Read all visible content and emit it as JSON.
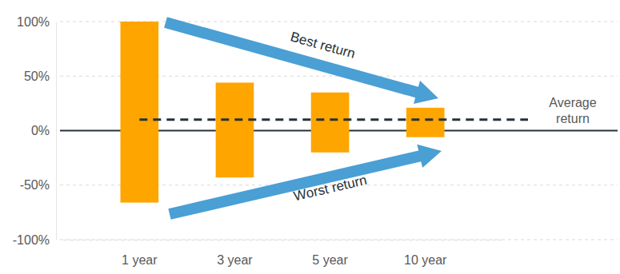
{
  "chart_data": {
    "type": "range_bar",
    "categories": [
      "1 year",
      "3 year",
      "5 year",
      "10 year"
    ],
    "series": [
      {
        "name": "Best return",
        "values": [
          100,
          44,
          35,
          21
        ]
      },
      {
        "name": "Worst return",
        "values": [
          -66,
          -43,
          -20,
          -6
        ]
      }
    ],
    "color": "#ffa500",
    "average": 10,
    "average_label": "Average return",
    "ylim": [
      -100,
      100
    ],
    "yticks": [
      {
        "value": -100,
        "label": "-100%"
      },
      {
        "value": -50,
        "label": "-50%"
      },
      {
        "value": 0,
        "label": "0%"
      },
      {
        "value": 50,
        "label": "50%"
      },
      {
        "value": 100,
        "label": "100%"
      }
    ],
    "grid": true
  }
}
